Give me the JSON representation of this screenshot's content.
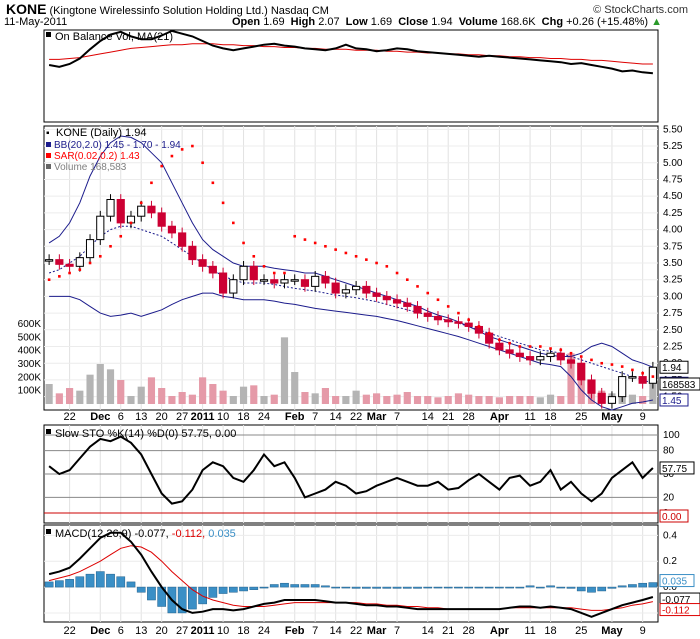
{
  "header": {
    "symbol": "KONE",
    "company": "(Kingtone Wirelessinfo Solution Holding Ltd.)",
    "exchange": "Nasdaq CM",
    "date": "11-May-2011",
    "open_label": "Open",
    "open": "1.69",
    "high_label": "High",
    "high": "2.07",
    "low_label": "Low",
    "low": "1.69",
    "close_label": "Close",
    "close": "1.94",
    "volume_label": "Volume",
    "volume": "168.6K",
    "chg_label": "Chg",
    "chg": "+0.26 (+15.48%)",
    "chg_arrow": "▲",
    "watermark": "© StockCharts.com"
  },
  "colors": {
    "price_up": "#ffffff",
    "price_down": "#cc0033",
    "bb": "#1c1c8c",
    "sar": "#ff0000",
    "volume": "#b4b4b4",
    "volume_down": "#e59aa8",
    "obv": "#000000",
    "obv_ma": "#dd0000",
    "sto_k": "#000000",
    "sto_d": "#cc0000",
    "macd": "#000000",
    "macd_signal": "#dd0000",
    "macd_hist": "#3a8fc6"
  },
  "chart_data": [
    {
      "type": "line",
      "title": "On Balance Vol, MA(21)",
      "series": [
        {
          "name": "On Balance Vol",
          "values": [
            62,
            60,
            63,
            69,
            79,
            88,
            95,
            98,
            93,
            90,
            90,
            94,
            99,
            96,
            93,
            88,
            83,
            80,
            78,
            80,
            82,
            84,
            85,
            83,
            82,
            80,
            79,
            78,
            80,
            84,
            80,
            79,
            77,
            78,
            80,
            79,
            77,
            76,
            75,
            74,
            73,
            72,
            71,
            72,
            71,
            70,
            69,
            68,
            67,
            66,
            65,
            63,
            64,
            62,
            60,
            58,
            55,
            56,
            54,
            53
          ]
        },
        {
          "name": "MA(21)",
          "values": [
            68,
            68,
            69,
            70,
            72,
            74,
            76,
            78,
            80,
            81,
            82,
            83,
            84,
            84,
            85,
            85,
            85,
            84,
            84,
            83,
            83,
            82,
            82,
            81,
            81,
            80,
            80,
            79,
            79,
            79,
            78,
            78,
            78,
            77,
            77,
            76,
            76,
            75,
            75,
            74,
            74,
            73,
            73,
            72,
            72,
            71,
            71,
            70,
            70,
            69,
            69,
            68,
            68,
            67,
            67,
            66,
            65,
            64,
            63,
            63
          ]
        }
      ]
    },
    {
      "type": "candlestick",
      "title": "KONE (Daily) 1.94",
      "legend": [
        {
          "name": "BB(20,2.0) 1.45 - 1.70 - 1.94",
          "color": "#1c1c8c"
        },
        {
          "name": "SAR(0.02,0.2) 1.43",
          "color": "#ff0000"
        },
        {
          "name": "Volume 168,583",
          "color": "#808080"
        }
      ],
      "y_ticks": [
        "5.50",
        "5.25",
        "5.00",
        "4.75",
        "4.50",
        "4.25",
        "4.00",
        "3.75",
        "3.50",
        "3.25",
        "3.00",
        "2.75",
        "2.50",
        "2.25",
        "2.00",
        "1.75",
        "1.50"
      ],
      "ylim": [
        1.3,
        5.55
      ],
      "volume_ticks": [
        "600K",
        "500K",
        "400K",
        "300K",
        "200K",
        "100K"
      ],
      "last_price_labels": [
        "1.94",
        "1.70",
        "168583",
        "1.45"
      ],
      "x_ticks": [
        "22",
        "Dec",
        "6",
        "13",
        "20",
        "27",
        "2011",
        "10",
        "18",
        "24",
        "Feb",
        "7",
        "14",
        "22",
        "Mar",
        "7",
        "14",
        "21",
        "28",
        "Apr",
        "11",
        "18",
        "25",
        "May",
        "9"
      ],
      "close": [
        3.55,
        3.48,
        3.45,
        3.58,
        3.85,
        4.2,
        4.45,
        4.1,
        4.2,
        4.35,
        4.25,
        4.05,
        3.95,
        3.75,
        3.55,
        3.45,
        3.35,
        3.05,
        3.25,
        3.45,
        3.25,
        3.25,
        3.2,
        3.25,
        3.25,
        3.15,
        3.3,
        3.2,
        3.05,
        3.1,
        3.15,
        3.05,
        3.0,
        2.95,
        2.9,
        2.85,
        2.75,
        2.7,
        2.65,
        2.62,
        2.6,
        2.55,
        2.45,
        2.3,
        2.2,
        2.15,
        2.1,
        2.05,
        2.1,
        2.15,
        2.05,
        2.0,
        1.75,
        1.55,
        1.4,
        1.5,
        1.8,
        1.8,
        1.7,
        1.94
      ],
      "bb_upper": [
        3.8,
        3.9,
        4.1,
        4.4,
        4.8,
        5.1,
        5.3,
        5.4,
        5.38,
        5.3,
        5.15,
        5.0,
        4.7,
        4.4,
        4.1,
        3.85,
        3.7,
        3.6,
        3.5,
        3.45,
        3.45,
        3.45,
        3.42,
        3.4,
        3.38,
        3.35,
        3.35,
        3.3,
        3.25,
        3.2,
        3.15,
        3.1,
        3.05,
        3.0,
        2.95,
        2.9,
        2.85,
        2.78,
        2.72,
        2.68,
        2.62,
        2.55,
        2.48,
        2.4,
        2.35,
        2.3,
        2.25,
        2.2,
        2.15,
        2.12,
        2.1,
        2.1,
        2.15,
        2.25,
        2.3,
        2.25,
        2.15,
        2.05,
        2.0,
        1.94
      ],
      "bb_mid": [
        3.35,
        3.4,
        3.5,
        3.6,
        3.75,
        3.9,
        4.0,
        4.05,
        4.05,
        4.0,
        3.95,
        3.9,
        3.8,
        3.7,
        3.6,
        3.5,
        3.4,
        3.3,
        3.25,
        3.2,
        3.2,
        3.2,
        3.18,
        3.15,
        3.12,
        3.1,
        3.08,
        3.05,
        3.02,
        3.0,
        2.98,
        2.95,
        2.92,
        2.88,
        2.84,
        2.8,
        2.76,
        2.72,
        2.68,
        2.64,
        2.6,
        2.55,
        2.5,
        2.45,
        2.4,
        2.35,
        2.3,
        2.25,
        2.2,
        2.18,
        2.15,
        2.1,
        2.05,
        2.0,
        1.95,
        1.9,
        1.85,
        1.8,
        1.75,
        1.7
      ],
      "bb_lower": [
        3.0,
        3.0,
        3.0,
        2.95,
        2.85,
        2.75,
        2.7,
        2.72,
        2.75,
        2.7,
        2.75,
        2.8,
        2.88,
        2.95,
        3.0,
        3.05,
        3.05,
        3.0,
        2.98,
        2.95,
        2.95,
        2.95,
        2.93,
        2.9,
        2.88,
        2.85,
        2.82,
        2.8,
        2.78,
        2.76,
        2.74,
        2.72,
        2.7,
        2.67,
        2.64,
        2.6,
        2.56,
        2.52,
        2.48,
        2.44,
        2.4,
        2.35,
        2.3,
        2.25,
        2.2,
        2.15,
        2.1,
        2.05,
        2.0,
        1.98,
        1.95,
        1.8,
        1.6,
        1.45,
        1.35,
        1.3,
        1.35,
        1.4,
        1.42,
        1.45
      ],
      "sar": [
        3.25,
        3.3,
        3.35,
        3.4,
        3.5,
        3.6,
        3.75,
        3.9,
        4.1,
        4.4,
        4.7,
        4.95,
        5.1,
        5.2,
        5.25,
        5.0,
        4.7,
        4.4,
        4.1,
        3.8,
        3.6,
        3.45,
        3.35,
        3.35,
        3.9,
        3.85,
        3.8,
        3.75,
        3.7,
        3.65,
        3.6,
        3.55,
        3.5,
        3.45,
        3.35,
        3.25,
        3.15,
        3.05,
        2.95,
        2.85,
        2.75,
        2.65,
        2.55,
        2.45,
        2.35,
        2.3,
        2.25,
        2.25,
        2.25,
        2.22,
        2.2,
        2.15,
        2.1,
        2.05,
        2.0,
        1.98,
        1.95,
        1.9,
        1.85,
        1.8
      ],
      "volume": [
        150,
        80,
        120,
        100,
        220,
        300,
        260,
        180,
        60,
        130,
        200,
        120,
        60,
        90,
        70,
        200,
        150,
        100,
        60,
        130,
        140,
        60,
        70,
        500,
        240,
        90,
        80,
        120,
        60,
        60,
        100,
        70,
        80,
        60,
        70,
        90,
        60,
        60,
        50,
        60,
        80,
        70,
        60,
        60,
        50,
        60,
        60,
        60,
        50,
        70,
        60,
        380,
        200,
        150,
        100,
        80,
        60,
        70,
        60,
        170
      ]
    },
    {
      "type": "line",
      "title": "Slow STO %K(14) %D(0) 57.75, 0.00",
      "series": [
        {
          "name": "%K",
          "values": [
            60,
            50,
            55,
            70,
            85,
            95,
            92,
            98,
            90,
            75,
            50,
            25,
            12,
            15,
            30,
            55,
            65,
            60,
            45,
            40,
            55,
            75,
            60,
            65,
            45,
            20,
            25,
            30,
            40,
            35,
            25,
            28,
            35,
            40,
            45,
            40,
            35,
            35,
            40,
            30,
            32,
            42,
            50,
            40,
            30,
            45,
            48,
            35,
            40,
            55,
            30,
            40,
            25,
            15,
            25,
            45,
            55,
            65,
            45,
            57.75
          ]
        },
        {
          "name": "%D",
          "values": [
            0,
            0,
            0,
            0,
            0,
            0,
            0,
            0,
            0,
            0,
            0,
            0,
            0,
            0,
            0,
            0,
            0,
            0,
            0,
            0,
            0,
            0,
            0,
            0,
            0,
            0,
            0,
            0,
            0,
            0,
            0,
            0,
            0,
            0,
            0,
            0,
            0,
            0,
            0,
            0,
            0,
            0,
            0,
            0,
            0,
            0,
            0,
            0,
            0,
            0,
            0,
            0,
            0,
            0,
            0,
            0,
            0,
            0,
            0,
            0
          ]
        }
      ],
      "y_ticks": [
        "100",
        "80",
        "50",
        "20",
        "0"
      ],
      "last_labels": [
        "57.75",
        "0.00"
      ]
    },
    {
      "type": "bar",
      "title": "MACD(12,26,9) -0.077, -0.112, 0.035",
      "title_parts": [
        "MACD(12,26,9) -0.077,",
        "-0.112,",
        "0.035"
      ],
      "y_ticks": [
        "0.4",
        "0.2",
        "0.0",
        "-0.2"
      ],
      "last_labels": [
        "0.035",
        "-0.077",
        "-0.112"
      ],
      "series": [
        {
          "name": "MACD",
          "values": [
            0.1,
            0.12,
            0.15,
            0.22,
            0.3,
            0.38,
            0.42,
            0.42,
            0.35,
            0.25,
            0.12,
            0.0,
            -0.1,
            -0.17,
            -0.2,
            -0.19,
            -0.17,
            -0.17,
            -0.18,
            -0.17,
            -0.15,
            -0.13,
            -0.12,
            -0.1,
            -0.1,
            -0.1,
            -0.1,
            -0.11,
            -0.12,
            -0.12,
            -0.13,
            -0.14,
            -0.14,
            -0.15,
            -0.15,
            -0.16,
            -0.17,
            -0.17,
            -0.17,
            -0.17,
            -0.17,
            -0.17,
            -0.17,
            -0.17,
            -0.17,
            -0.16,
            -0.15,
            -0.15,
            -0.16,
            -0.15,
            -0.16,
            -0.17,
            -0.2,
            -0.23,
            -0.2,
            -0.17,
            -0.14,
            -0.12,
            -0.1,
            -0.077
          ]
        },
        {
          "name": "Signal",
          "values": [
            0.05,
            0.07,
            0.09,
            0.12,
            0.16,
            0.2,
            0.25,
            0.3,
            0.32,
            0.31,
            0.27,
            0.2,
            0.12,
            0.05,
            -0.02,
            -0.07,
            -0.1,
            -0.12,
            -0.14,
            -0.15,
            -0.15,
            -0.15,
            -0.14,
            -0.13,
            -0.12,
            -0.12,
            -0.12,
            -0.12,
            -0.12,
            -0.12,
            -0.12,
            -0.13,
            -0.13,
            -0.14,
            -0.14,
            -0.15,
            -0.15,
            -0.16,
            -0.16,
            -0.17,
            -0.17,
            -0.17,
            -0.17,
            -0.17,
            -0.17,
            -0.16,
            -0.16,
            -0.16,
            -0.16,
            -0.16,
            -0.16,
            -0.16,
            -0.17,
            -0.18,
            -0.18,
            -0.17,
            -0.16,
            -0.14,
            -0.13,
            -0.112
          ]
        },
        {
          "name": "Histogram",
          "values": [
            0.04,
            0.05,
            0.06,
            0.08,
            0.1,
            0.12,
            0.1,
            0.08,
            0.04,
            -0.04,
            -0.1,
            -0.15,
            -0.2,
            -0.2,
            -0.17,
            -0.13,
            -0.08,
            -0.05,
            -0.04,
            -0.03,
            -0.02,
            0.0,
            0.02,
            0.03,
            0.02,
            0.02,
            0.02,
            0.01,
            0.0,
            0.0,
            -0.01,
            -0.01,
            -0.01,
            -0.01,
            -0.01,
            -0.01,
            -0.01,
            0.0,
            0.0,
            0.0,
            0.0,
            0.0,
            0.0,
            0.0,
            0.0,
            0.0,
            0.0,
            0.01,
            0.0,
            0.01,
            0.0,
            -0.01,
            -0.03,
            -0.04,
            -0.03,
            -0.01,
            0.01,
            0.02,
            0.03,
            0.035
          ]
        }
      ]
    }
  ]
}
